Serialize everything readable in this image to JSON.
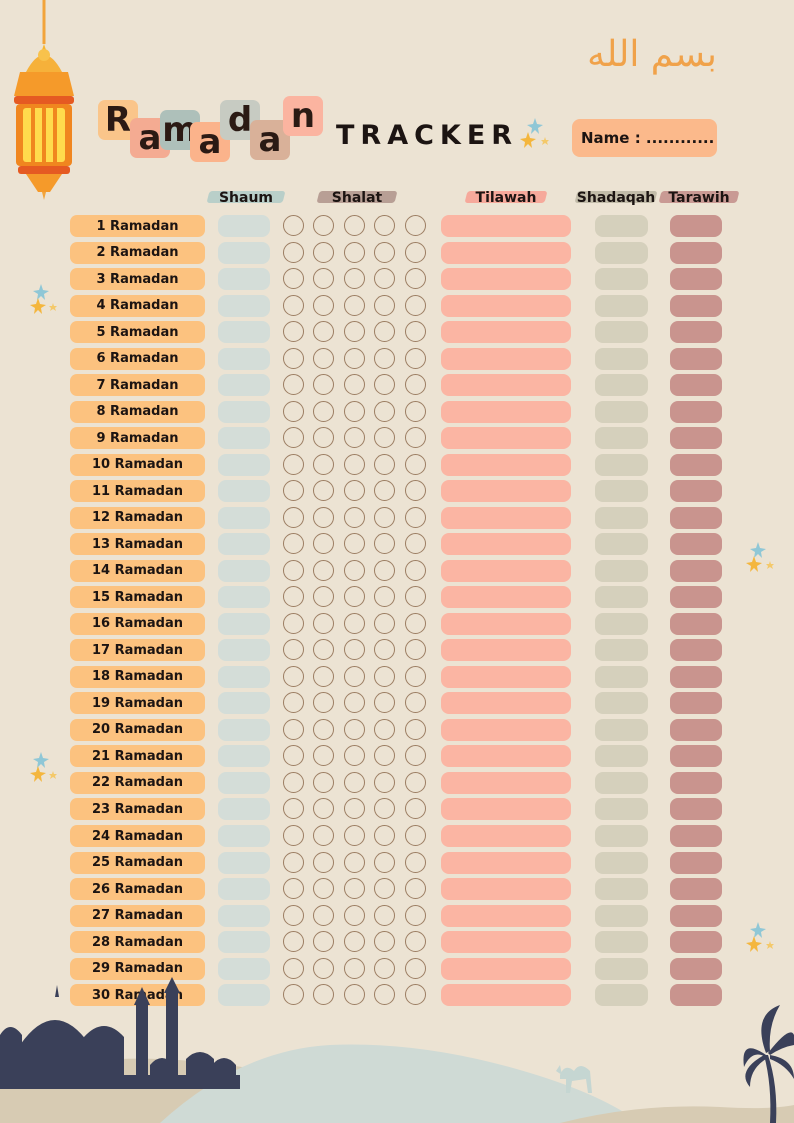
{
  "header": {
    "title_word": "Ramadan",
    "title_letters": [
      "R",
      "a",
      "m",
      "a",
      "d",
      "a",
      "n"
    ],
    "subtitle": "TRACKER",
    "bismillah": "بسم الله",
    "name_label": "Name : ............"
  },
  "columns": {
    "shaum": "Shaum",
    "shalat": "Shalat",
    "tilawah": "Tilawah",
    "shadaqah": "Shadaqah",
    "tarawih": "Tarawih"
  },
  "days": [
    "1 Ramadan",
    "2 Ramadan",
    "3 Ramadan",
    "4 Ramadan",
    "5 Ramadan",
    "6 Ramadan",
    "7 Ramadan",
    "8 Ramadan",
    "9 Ramadan",
    "10 Ramadan",
    "11 Ramadan",
    "12 Ramadan",
    "13 Ramadan",
    "14 Ramadan",
    "15 Ramadan",
    "16 Ramadan",
    "17 Ramadan",
    "18 Ramadan",
    "19 Ramadan",
    "20 Ramadan",
    "21 Ramadan",
    "22 Ramadan",
    "23 Ramadan",
    "24 Ramadan",
    "25 Ramadan",
    "26 Ramadan",
    "27 Ramadan",
    "28 Ramadan",
    "29 Ramadan",
    "30 Ramadan"
  ],
  "colors": {
    "background": "#ece3d3",
    "day": "#fcc27f",
    "shaum": "#d4ddd8",
    "prayer_ring": "#9c7e63",
    "tilawah": "#fbb5a3",
    "shadaqah": "#d5d0bc",
    "tarawih": "#c9948e",
    "name_box": "#fbb98b",
    "mosque": "#3a4059"
  },
  "icons": [
    "lantern-icon",
    "star-icon",
    "mosque-silhouette-icon",
    "palm-tree-icon",
    "camel-icon"
  ]
}
